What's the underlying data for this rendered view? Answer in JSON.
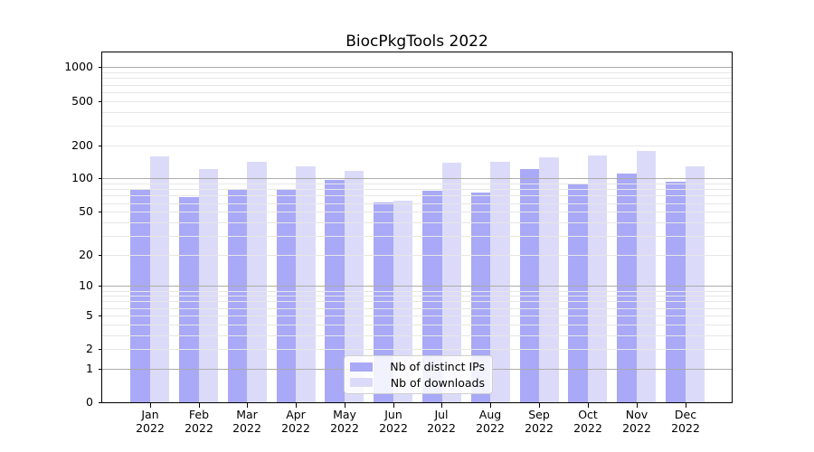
{
  "chart_data": {
    "type": "bar",
    "title": "BiocPkgTools 2022",
    "categories": [
      "Jan",
      "Feb",
      "Mar",
      "Apr",
      "May",
      "Jun",
      "Jul",
      "Aug",
      "Sep",
      "Oct",
      "Nov",
      "Dec"
    ],
    "x_tick_second_line": "2022",
    "series": [
      {
        "name": "Nb of distinct IPs",
        "color": "#a9a9f7",
        "values": [
          81,
          68,
          81,
          81,
          98,
          61,
          78,
          75,
          121,
          90,
          110,
          93
        ]
      },
      {
        "name": "Nb of downloads",
        "color": "#dbdbf9",
        "values": [
          158,
          121,
          142,
          129,
          117,
          63,
          139,
          141,
          156,
          160,
          176,
          129
        ]
      }
    ],
    "y_scale": "log10(1+v)",
    "y_ticks": [
      0,
      1,
      2,
      5,
      10,
      20,
      50,
      100,
      200,
      500,
      1000
    ],
    "ylim": [
      0,
      1360
    ],
    "grid": {
      "major_values": [
        1,
        10,
        100,
        1000
      ],
      "major_color": "#ababab",
      "minor_color": "#e7e7e7"
    },
    "legend_position": "lower center",
    "axis_color": "#000000",
    "background_color": "#ffffff"
  }
}
